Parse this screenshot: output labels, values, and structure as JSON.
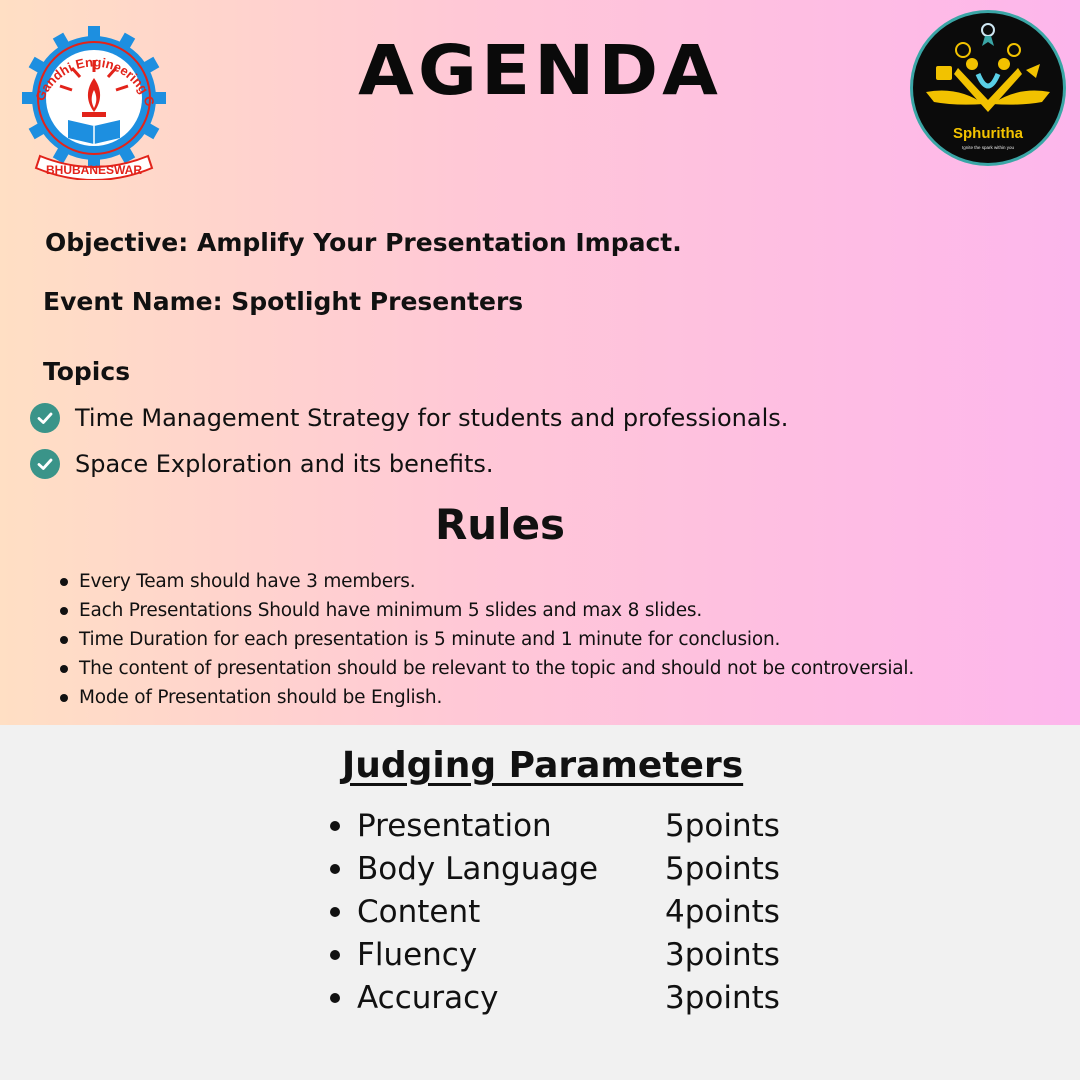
{
  "title": "AGENDA",
  "logos": {
    "left": {
      "arc_text": "Gandhi Engineering College",
      "banner_text": "BHUBANESWAR"
    },
    "right": {
      "name": "Sphuritha",
      "tagline": "Ignite the spark within you"
    }
  },
  "objective": "Objective: Amplify Your Presentation Impact.",
  "event_name": "Event Name: Spotlight Presenters",
  "topics": {
    "heading": "Topics",
    "items": [
      "Time Management Strategy for students and professionals.",
      "Space Exploration and its benefits."
    ]
  },
  "rules": {
    "heading": "Rules",
    "items": [
      "Every Team should have 3 members.",
      "Each Presentations Should have minimum 5 slides and max 8 slides.",
      "Time Duration for each presentation is 5 minute and 1 minute for conclusion.",
      "The content of presentation should be relevant to the topic and should not be controversial.",
      "Mode of Presentation should be English."
    ]
  },
  "judging": {
    "heading": "Judging Parameters",
    "items": [
      {
        "name": "Presentation",
        "points": "5points"
      },
      {
        "name": "Body Language",
        "points": "5points"
      },
      {
        "name": "Content",
        "points": "4points"
      },
      {
        "name": "Fluency",
        "points": "3points"
      },
      {
        "name": "Accuracy",
        "points": "3points"
      }
    ]
  },
  "colors": {
    "gradient_left": "#ffdfc4",
    "gradient_right": "#fdb6ec",
    "check_teal": "#3a9489",
    "bottom_bg": "#f1f1f1",
    "logo_red": "#e2231a",
    "logo_blue": "#1d8fe0",
    "logo_gold": "#f2c200"
  }
}
